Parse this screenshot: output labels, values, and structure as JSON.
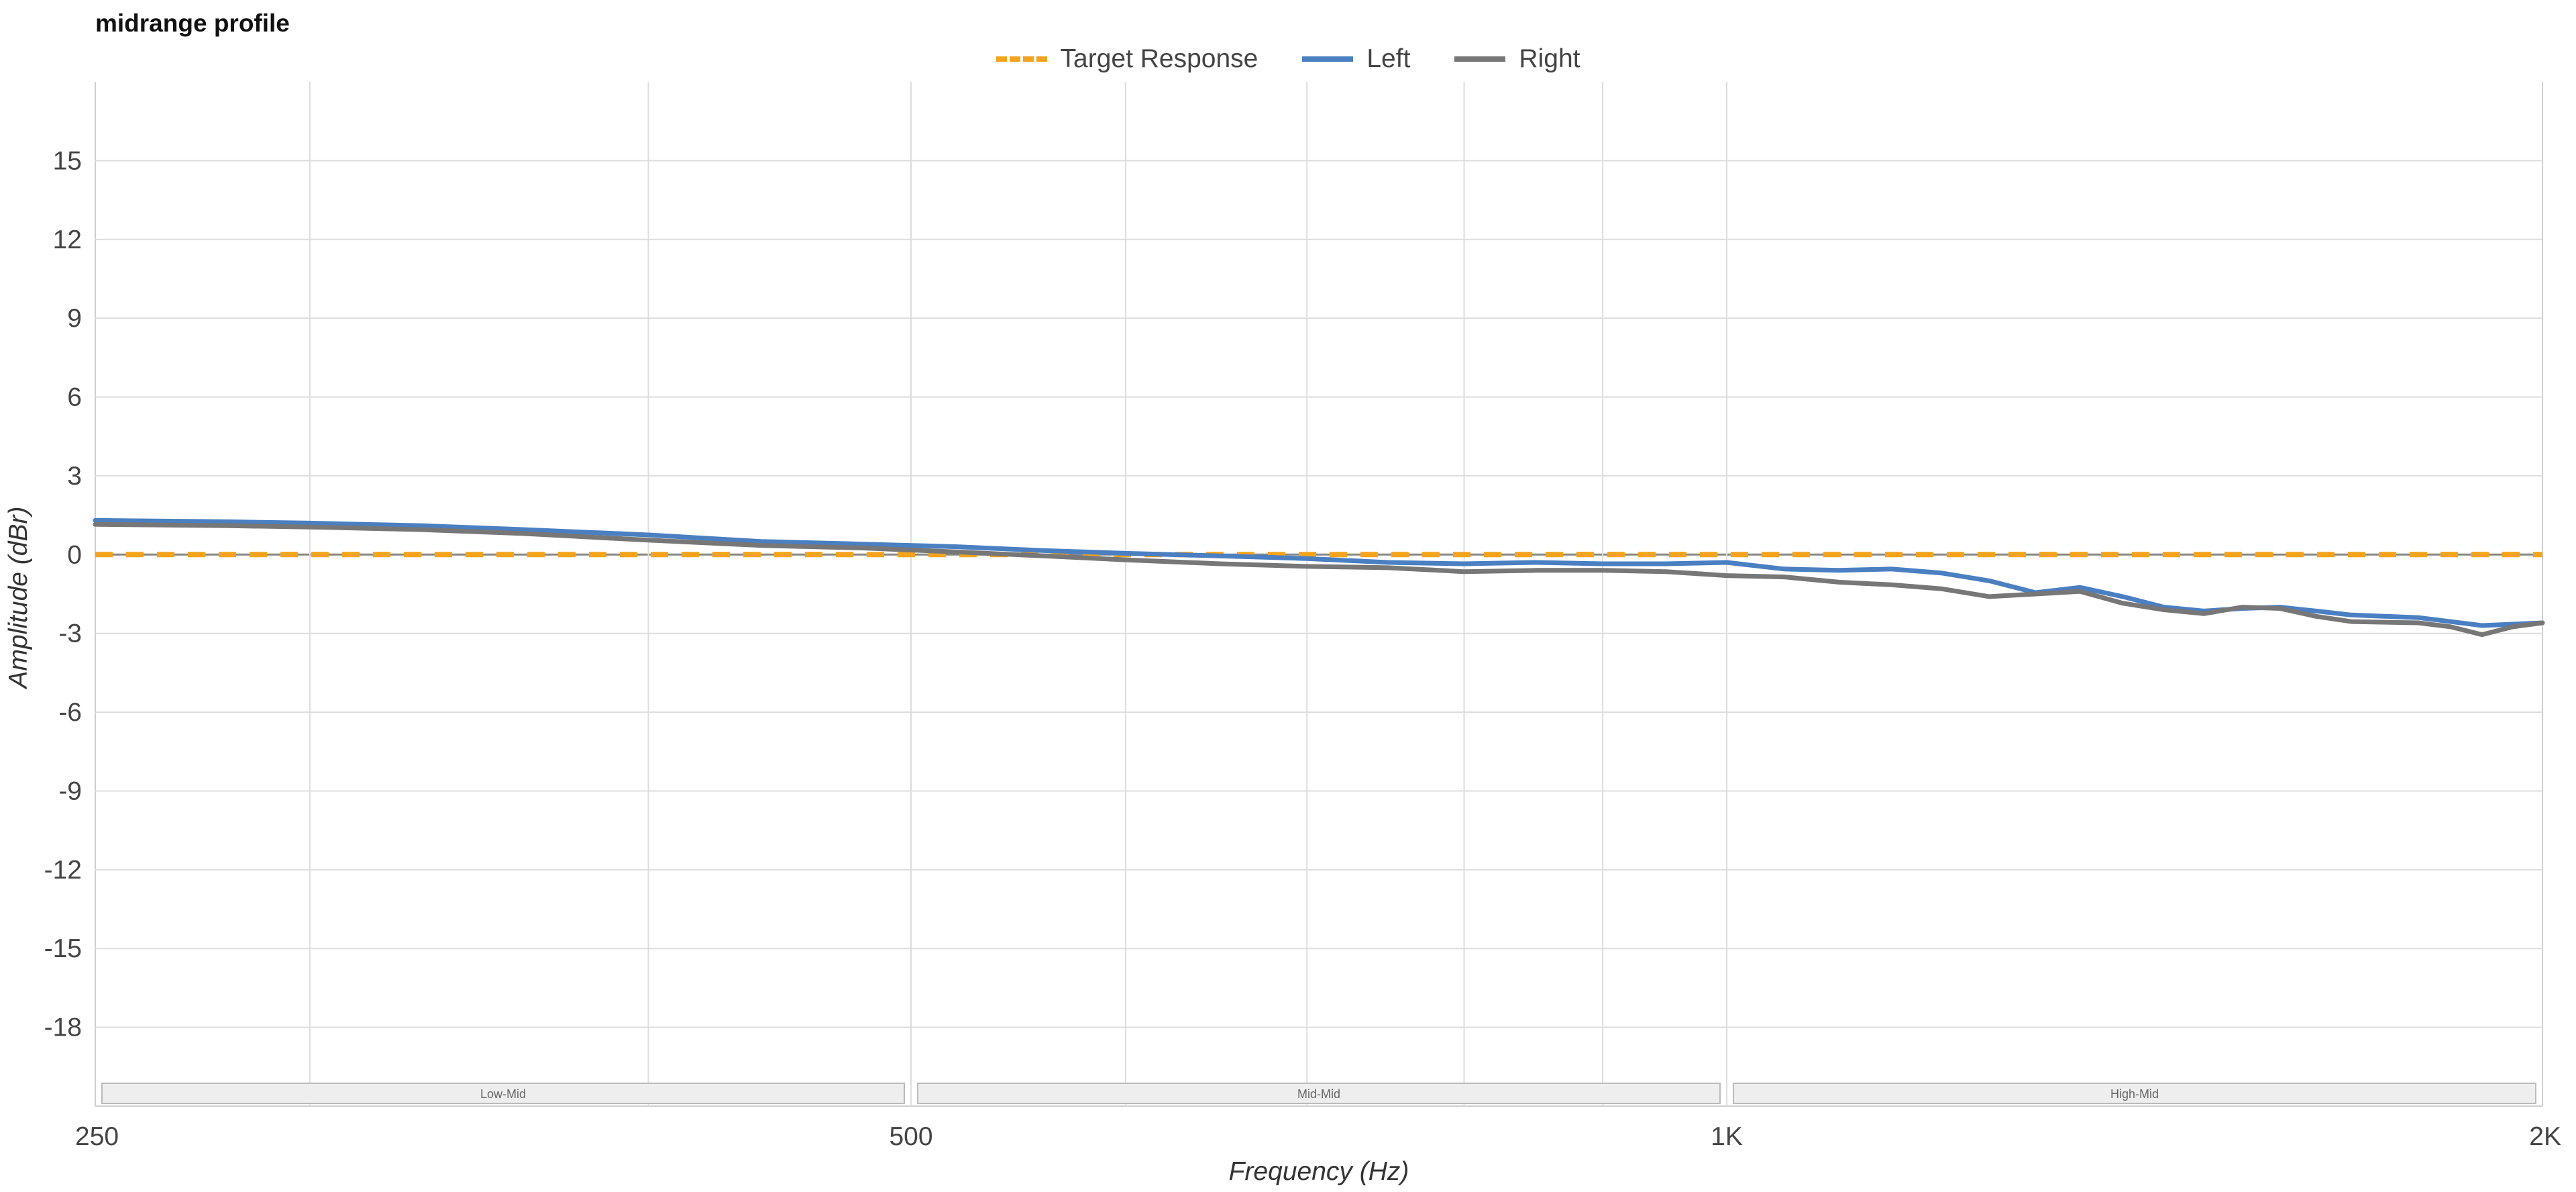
{
  "chart_data": {
    "type": "line",
    "title": "midrange profile",
    "xlabel": "Frequency (Hz)",
    "ylabel": "Amplitude (dBr)",
    "xscale": "log",
    "xlim": [
      250,
      2000
    ],
    "ylim": [
      -21,
      18
    ],
    "legend_position": "top-center",
    "grid": true,
    "x_ticks": [
      {
        "value": 250,
        "label": "250"
      },
      {
        "value": 500,
        "label": "500"
      },
      {
        "value": 1000,
        "label": "1K"
      },
      {
        "value": 2000,
        "label": "2K"
      }
    ],
    "y_ticks": [
      15,
      12,
      9,
      6,
      3,
      0,
      -3,
      -6,
      -9,
      -12,
      -15,
      -18
    ],
    "bands": [
      {
        "label": "Low-Mid",
        "from": 250,
        "to": 500
      },
      {
        "label": "Mid-Mid",
        "from": 500,
        "to": 1000
      },
      {
        "label": "High-Mid",
        "from": 1000,
        "to": 2000
      }
    ],
    "series": [
      {
        "name": "Target Response",
        "color": "#f5a31a",
        "dash": true,
        "points": [
          [
            250,
            0
          ],
          [
            2000,
            0
          ]
        ]
      },
      {
        "name": "Left",
        "color": "#4a7fc1",
        "points": [
          [
            250,
            1.3
          ],
          [
            280,
            1.25
          ],
          [
            300,
            1.2
          ],
          [
            330,
            1.1
          ],
          [
            360,
            0.95
          ],
          [
            400,
            0.75
          ],
          [
            440,
            0.5
          ],
          [
            480,
            0.4
          ],
          [
            520,
            0.3
          ],
          [
            560,
            0.15
          ],
          [
            600,
            0.05
          ],
          [
            650,
            -0.05
          ],
          [
            700,
            -0.15
          ],
          [
            750,
            -0.3
          ],
          [
            800,
            -0.35
          ],
          [
            850,
            -0.3
          ],
          [
            900,
            -0.35
          ],
          [
            950,
            -0.35
          ],
          [
            1000,
            -0.3
          ],
          [
            1050,
            -0.55
          ],
          [
            1100,
            -0.6
          ],
          [
            1150,
            -0.55
          ],
          [
            1200,
            -0.7
          ],
          [
            1250,
            -1.0
          ],
          [
            1300,
            -1.45
          ],
          [
            1350,
            -1.25
          ],
          [
            1400,
            -1.6
          ],
          [
            1450,
            -2.0
          ],
          [
            1500,
            -2.15
          ],
          [
            1550,
            -2.05
          ],
          [
            1600,
            -2.0
          ],
          [
            1650,
            -2.15
          ],
          [
            1700,
            -2.3
          ],
          [
            1800,
            -2.4
          ],
          [
            1900,
            -2.7
          ],
          [
            1950,
            -2.65
          ],
          [
            2000,
            -2.6
          ]
        ]
      },
      {
        "name": "Right",
        "color": "#777777",
        "points": [
          [
            250,
            1.15
          ],
          [
            280,
            1.1
          ],
          [
            300,
            1.05
          ],
          [
            330,
            0.95
          ],
          [
            360,
            0.8
          ],
          [
            400,
            0.55
          ],
          [
            440,
            0.35
          ],
          [
            480,
            0.25
          ],
          [
            520,
            0.1
          ],
          [
            560,
            -0.05
          ],
          [
            600,
            -0.2
          ],
          [
            650,
            -0.35
          ],
          [
            700,
            -0.45
          ],
          [
            750,
            -0.5
          ],
          [
            800,
            -0.65
          ],
          [
            850,
            -0.6
          ],
          [
            900,
            -0.6
          ],
          [
            950,
            -0.65
          ],
          [
            1000,
            -0.8
          ],
          [
            1050,
            -0.85
          ],
          [
            1100,
            -1.05
          ],
          [
            1150,
            -1.15
          ],
          [
            1200,
            -1.3
          ],
          [
            1250,
            -1.6
          ],
          [
            1300,
            -1.5
          ],
          [
            1350,
            -1.4
          ],
          [
            1400,
            -1.85
          ],
          [
            1450,
            -2.1
          ],
          [
            1500,
            -2.25
          ],
          [
            1550,
            -2.0
          ],
          [
            1600,
            -2.05
          ],
          [
            1650,
            -2.35
          ],
          [
            1700,
            -2.55
          ],
          [
            1800,
            -2.6
          ],
          [
            1850,
            -2.75
          ],
          [
            1900,
            -3.05
          ],
          [
            1950,
            -2.75
          ],
          [
            2000,
            -2.6
          ]
        ]
      }
    ]
  }
}
